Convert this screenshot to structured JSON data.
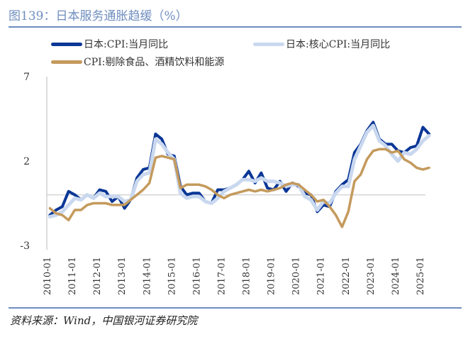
{
  "title": "图139：日本服务通胀趋缓（%）",
  "source": "资料来源：Wind，中国银河证券研究院",
  "chart_data": {
    "type": "line",
    "title": "图139：日本服务通胀趋缓（%）",
    "xlabel": "",
    "ylabel": "",
    "ylim": [
      -3,
      7
    ],
    "yticks": [
      "7",
      "2",
      "-3"
    ],
    "ytick_values": [
      7,
      2,
      -3
    ],
    "xticks": [
      "2010-01",
      "2011-01",
      "2012-01",
      "2013-01",
      "2014-01",
      "2015-01",
      "2016-01",
      "2017-01",
      "2018-01",
      "2019-01",
      "2020-01",
      "2021-01",
      "2022-01",
      "2023-01",
      "2024-01",
      "2025-01"
    ],
    "x_frequency": "quarterly, starting 2010-Q1",
    "grid": "zero line only",
    "legend": "top",
    "series": [
      {
        "name": "日本:CPI:当月同比",
        "color": "#0a3696",
        "values": [
          -1.2,
          -0.9,
          -0.7,
          0.2,
          0.0,
          -0.3,
          0.0,
          -0.2,
          0.3,
          0.2,
          -0.4,
          -0.1,
          -0.8,
          -0.3,
          1.0,
          1.5,
          1.6,
          3.6,
          3.3,
          2.4,
          2.3,
          0.5,
          0.0,
          0.1,
          0.1,
          -0.4,
          -0.5,
          0.3,
          0.3,
          0.4,
          0.6,
          0.9,
          1.4,
          0.7,
          1.3,
          0.4,
          0.3,
          0.8,
          0.2,
          0.7,
          0.5,
          0.1,
          0.0,
          -1.0,
          -0.6,
          -0.7,
          0.2,
          0.6,
          0.9,
          2.5,
          3.0,
          3.8,
          4.3,
          3.3,
          3.0,
          3.0,
          2.6,
          2.5,
          2.8,
          2.9,
          4.0,
          3.6
        ]
      },
      {
        "name": "日本:核心CPI:当月同比",
        "color": "#c9d8ef",
        "values": [
          -1.3,
          -1.2,
          -1.0,
          -0.6,
          -0.2,
          -0.3,
          0.0,
          -0.2,
          0.1,
          -0.1,
          -0.1,
          -0.1,
          -0.4,
          -0.3,
          0.8,
          1.2,
          1.3,
          3.3,
          3.0,
          2.5,
          2.1,
          0.1,
          -0.2,
          -0.1,
          -0.1,
          -0.4,
          -0.5,
          -0.2,
          0.2,
          0.4,
          0.6,
          0.9,
          0.9,
          0.8,
          1.0,
          0.8,
          0.8,
          0.7,
          0.5,
          0.6,
          0.6,
          -0.1,
          -0.3,
          -0.9,
          -0.4,
          -0.5,
          0.1,
          0.5,
          0.5,
          2.1,
          2.9,
          3.7,
          4.1,
          3.2,
          2.9,
          2.4,
          2.0,
          2.5,
          2.4,
          2.7,
          3.2,
          3.5
        ]
      },
      {
        "name": "CPI:剔除食品、酒精饮料和能源",
        "color": "#c49a5c",
        "values": [
          -0.8,
          -1.1,
          -1.2,
          -1.5,
          -0.9,
          -0.9,
          -0.6,
          -0.5,
          -0.5,
          -0.5,
          -0.6,
          -0.6,
          -0.6,
          -0.3,
          0.0,
          0.3,
          0.7,
          2.2,
          2.3,
          2.2,
          2.1,
          0.4,
          0.6,
          0.6,
          0.6,
          0.5,
          0.3,
          0.0,
          -0.2,
          0.0,
          0.1,
          0.2,
          0.3,
          0.2,
          0.3,
          0.2,
          0.3,
          0.4,
          0.6,
          0.7,
          0.6,
          0.3,
          0.0,
          -0.4,
          -0.3,
          -0.7,
          -1.2,
          -1.9,
          -1.0,
          0.8,
          1.2,
          2.1,
          2.6,
          2.7,
          2.7,
          2.5,
          2.6,
          2.1,
          1.9,
          1.6,
          1.5,
          1.6
        ]
      }
    ]
  }
}
